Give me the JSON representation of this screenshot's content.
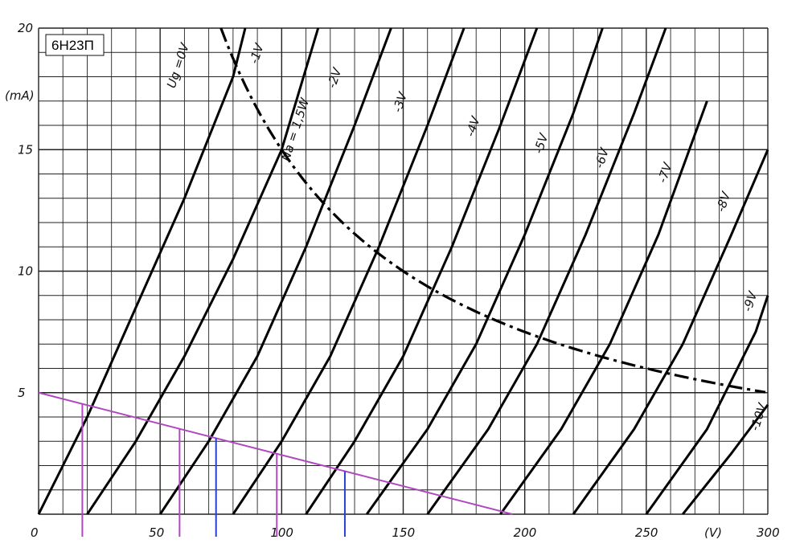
{
  "chart_data": {
    "type": "line",
    "title": "6Н23П",
    "xlabel": "(V)",
    "ylabel": "(mA)",
    "xlim": [
      0,
      300
    ],
    "ylim": [
      0,
      20
    ],
    "grid": true,
    "x_ticks": [
      "0",
      "50",
      "100",
      "150",
      "200",
      "250",
      "300"
    ],
    "y_ticks": [
      "5",
      "10",
      "15",
      "20"
    ],
    "series": [
      {
        "name": "Ug = 0V",
        "points": [
          [
            0,
            0
          ],
          [
            20,
            4
          ],
          [
            40,
            8.5
          ],
          [
            60,
            13
          ],
          [
            80,
            18
          ],
          [
            85,
            20
          ]
        ]
      },
      {
        "name": "-1V",
        "points": [
          [
            20,
            0
          ],
          [
            40,
            3
          ],
          [
            60,
            6.5
          ],
          [
            80,
            10.5
          ],
          [
            100,
            15
          ],
          [
            115,
            20
          ]
        ]
      },
      {
        "name": "-2V",
        "points": [
          [
            50,
            0
          ],
          [
            70,
            3
          ],
          [
            90,
            6.5
          ],
          [
            110,
            11
          ],
          [
            130,
            16
          ],
          [
            145,
            20
          ]
        ]
      },
      {
        "name": "-3V",
        "points": [
          [
            80,
            0
          ],
          [
            100,
            3
          ],
          [
            120,
            6.5
          ],
          [
            140,
            11
          ],
          [
            160,
            16
          ],
          [
            175,
            20
          ]
        ]
      },
      {
        "name": "-4V",
        "points": [
          [
            110,
            0
          ],
          [
            130,
            3
          ],
          [
            150,
            6.5
          ],
          [
            170,
            11
          ],
          [
            190,
            16
          ],
          [
            205,
            20
          ]
        ]
      },
      {
        "name": "-5V",
        "points": [
          [
            135,
            0
          ],
          [
            160,
            3.5
          ],
          [
            180,
            7
          ],
          [
            200,
            11.5
          ],
          [
            220,
            16.5
          ],
          [
            232,
            20
          ]
        ]
      },
      {
        "name": "-6V",
        "points": [
          [
            160,
            0
          ],
          [
            185,
            3.5
          ],
          [
            205,
            7
          ],
          [
            225,
            11.5
          ],
          [
            245,
            16.5
          ],
          [
            258,
            20
          ]
        ]
      },
      {
        "name": "-7V",
        "points": [
          [
            190,
            0
          ],
          [
            215,
            3.5
          ],
          [
            235,
            7
          ],
          [
            255,
            11.5
          ],
          [
            275,
            17
          ]
        ]
      },
      {
        "name": "-8V",
        "points": [
          [
            220,
            0
          ],
          [
            245,
            3.5
          ],
          [
            265,
            7
          ],
          [
            285,
            11.5
          ],
          [
            300,
            15
          ]
        ]
      },
      {
        "name": "-9V",
        "points": [
          [
            250,
            0
          ],
          [
            275,
            3.5
          ],
          [
            295,
            7.5
          ],
          [
            300,
            9
          ]
        ]
      },
      {
        "name": "-10V",
        "points": [
          [
            265,
            0
          ],
          [
            285,
            2.5
          ],
          [
            300,
            4.5
          ]
        ]
      }
    ],
    "max_dissipation": {
      "name": "Na = 1,5W",
      "watts": 1.5
    },
    "load_line": {
      "x": [
        0,
        195
      ],
      "y": [
        5,
        0
      ],
      "color": "#b048c0"
    },
    "markers_purple": [
      18,
      58,
      98
    ],
    "markers_blue": [
      73,
      126
    ],
    "marker_color_purple": "#b048c0",
    "marker_color_blue": "#2a3fd0",
    "curve_labels": [
      {
        "text": "Ug =0V",
        "x": 56,
        "y": 17.5
      },
      {
        "text": "-1V",
        "x": 90,
        "y": 18.5
      },
      {
        "text": "-2V",
        "x": 122,
        "y": 17.5
      },
      {
        "text": "-3V",
        "x": 149,
        "y": 16.5
      },
      {
        "text": "-4V",
        "x": 179,
        "y": 15.5
      },
      {
        "text": "-5V",
        "x": 207,
        "y": 14.8
      },
      {
        "text": "-6V",
        "x": 232,
        "y": 14.2
      },
      {
        "text": "-7V",
        "x": 258,
        "y": 13.6
      },
      {
        "text": "-8V",
        "x": 282,
        "y": 12.4
      },
      {
        "text": "-9V",
        "x": 293,
        "y": 8.3
      },
      {
        "text": "-10V",
        "x": 296,
        "y": 3.4
      },
      {
        "text": "Na = 1,5W",
        "x": 103,
        "y": 14.5
      }
    ]
  }
}
